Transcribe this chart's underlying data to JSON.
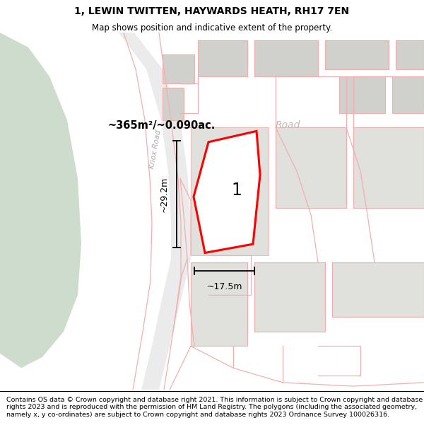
{
  "title": "1, LEWIN TWITTEN, HAYWARDS HEATH, RH17 7EN",
  "subtitle": "Map shows position and indicative extent of the property.",
  "footer": "Contains OS data © Crown copyright and database right 2021. This information is subject to Crown copyright and database rights 2023 and is reproduced with the permission of HM Land Registry. The polygons (including the associated geometry, namely x, y co-ordinates) are subject to Crown copyright and database rights 2023 Ordnance Survey 100026316.",
  "bg_map_color": "#f5f5f0",
  "bg_green_color": "#cddccd",
  "road_label": "Knox Road",
  "area_label": "~365m²/~0.090ac.",
  "width_label": "~17.5m",
  "height_label": "~29.2m",
  "plot_label": "1",
  "title_fontsize": 10,
  "subtitle_fontsize": 8.5,
  "footer_fontsize": 6.8
}
